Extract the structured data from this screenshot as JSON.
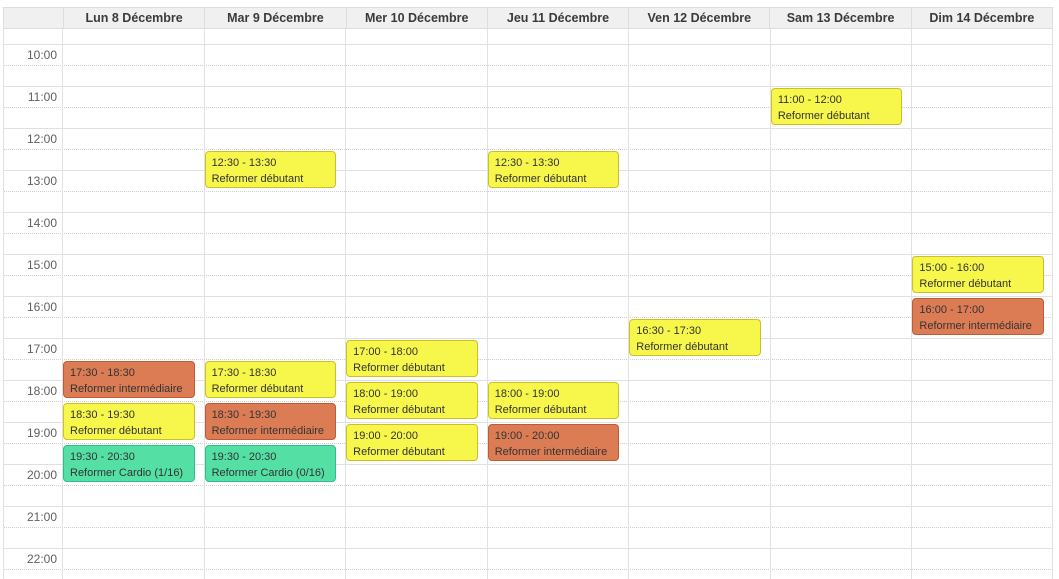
{
  "calendar": {
    "days": [
      {
        "label": "Lun 8 Décembre"
      },
      {
        "label": "Mar 9 Décembre"
      },
      {
        "label": "Mer 10 Décembre"
      },
      {
        "label": "Jeu 11 Décembre"
      },
      {
        "label": "Ven 12 Décembre"
      },
      {
        "label": "Sam 13 Décembre"
      },
      {
        "label": "Dim 14 Décembre"
      }
    ],
    "hours": [
      "10:00",
      "11:00",
      "12:00",
      "13:00",
      "14:00",
      "15:00",
      "16:00",
      "17:00",
      "18:00",
      "19:00",
      "20:00",
      "21:00",
      "22:00"
    ],
    "events": [
      {
        "day": 0,
        "start": "17:30",
        "end": "18:30",
        "time_label": "17:30 - 18:30",
        "title": "Reformer intermédiaire",
        "type": "intermediaire"
      },
      {
        "day": 0,
        "start": "18:30",
        "end": "19:30",
        "time_label": "18:30 - 19:30",
        "title": "Reformer débutant",
        "type": "debutant"
      },
      {
        "day": 0,
        "start": "19:30",
        "end": "20:30",
        "time_label": "19:30 - 20:30",
        "title": "Reformer Cardio (1/16)",
        "type": "cardio"
      },
      {
        "day": 1,
        "start": "12:30",
        "end": "13:30",
        "time_label": "12:30 - 13:30",
        "title": "Reformer débutant",
        "type": "debutant"
      },
      {
        "day": 1,
        "start": "17:30",
        "end": "18:30",
        "time_label": "17:30 - 18:30",
        "title": "Reformer débutant",
        "type": "debutant"
      },
      {
        "day": 1,
        "start": "18:30",
        "end": "19:30",
        "time_label": "18:30 - 19:30",
        "title": "Reformer intermédiaire",
        "type": "intermediaire"
      },
      {
        "day": 1,
        "start": "19:30",
        "end": "20:30",
        "time_label": "19:30 - 20:30",
        "title": "Reformer Cardio (0/16)",
        "type": "cardio"
      },
      {
        "day": 2,
        "start": "17:00",
        "end": "18:00",
        "time_label": "17:00 - 18:00",
        "title": "Reformer débutant",
        "type": "debutant"
      },
      {
        "day": 2,
        "start": "18:00",
        "end": "19:00",
        "time_label": "18:00 - 19:00",
        "title": "Reformer débutant",
        "type": "debutant"
      },
      {
        "day": 2,
        "start": "19:00",
        "end": "20:00",
        "time_label": "19:00 - 20:00",
        "title": "Reformer débutant",
        "type": "debutant"
      },
      {
        "day": 3,
        "start": "12:30",
        "end": "13:30",
        "time_label": "12:30 - 13:30",
        "title": "Reformer débutant",
        "type": "debutant"
      },
      {
        "day": 3,
        "start": "18:00",
        "end": "19:00",
        "time_label": "18:00 - 19:00",
        "title": "Reformer débutant",
        "type": "debutant"
      },
      {
        "day": 3,
        "start": "19:00",
        "end": "20:00",
        "time_label": "19:00 - 20:00",
        "title": "Reformer intermédiaire",
        "type": "intermediaire"
      },
      {
        "day": 4,
        "start": "16:30",
        "end": "17:30",
        "time_label": "16:30 - 17:30",
        "title": "Reformer débutant",
        "type": "debutant"
      },
      {
        "day": 5,
        "start": "11:00",
        "end": "12:00",
        "time_label": "11:00 - 12:00",
        "title": "Reformer débutant",
        "type": "debutant"
      },
      {
        "day": 6,
        "start": "15:00",
        "end": "16:00",
        "time_label": "15:00 - 16:00",
        "title": "Reformer débutant",
        "type": "debutant"
      },
      {
        "day": 6,
        "start": "16:00",
        "end": "17:00",
        "time_label": "16:00 - 17:00",
        "title": "Reformer intermédiaire",
        "type": "intermediaire"
      }
    ],
    "event_colors": {
      "debutant": {
        "fill": "#F7F64B",
        "border": "#CBC02B"
      },
      "intermediaire": {
        "fill": "#DC7C55",
        "border": "#BE5B36"
      },
      "cardio": {
        "fill": "#54DFA5",
        "border": "#2EBE8C"
      }
    }
  }
}
